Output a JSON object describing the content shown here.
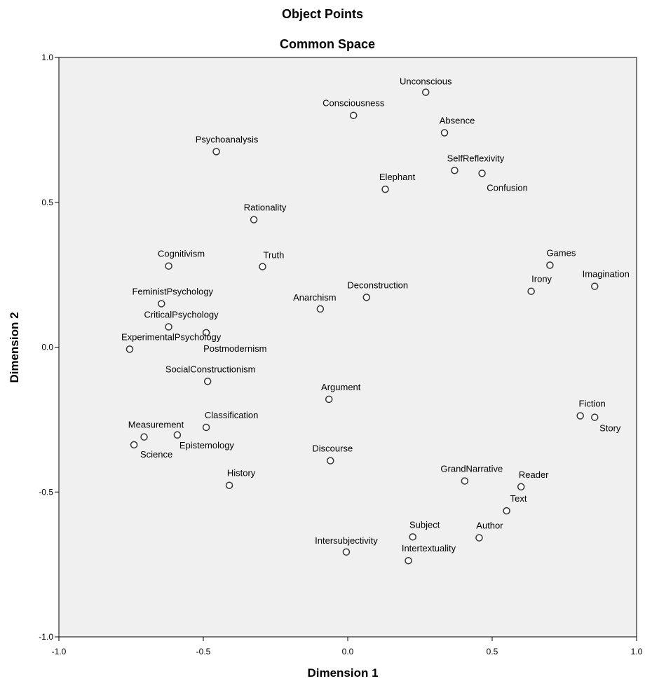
{
  "chart_data": {
    "type": "scatter",
    "title": "Object Points",
    "subtitle": "Common Space",
    "xlabel": "Dimension 1",
    "ylabel": "Dimension 2",
    "xlim": [
      -1.0,
      1.0
    ],
    "ylim": [
      -1.0,
      1.0
    ],
    "x_ticks": [
      "-1.0",
      "-0.5",
      "0.0",
      "0.5",
      "1.0"
    ],
    "y_ticks": [
      "-1.0",
      "-0.5",
      "0.0",
      "0.5",
      "1.0"
    ],
    "grid": false,
    "legend": "none",
    "colors": {
      "plot_background": "#f0f0f0",
      "marker_stroke": "#333333",
      "marker_fill": "#ffffff",
      "axis": "#000000"
    },
    "points": [
      {
        "label": "Unconscious",
        "x": 0.27,
        "y": 0.88
      },
      {
        "label": "Consciousness",
        "x": 0.02,
        "y": 0.8
      },
      {
        "label": "Absence",
        "x": 0.335,
        "y": 0.74
      },
      {
        "label": "Psychoanalysis",
        "x": -0.455,
        "y": 0.675
      },
      {
        "label": "SelfReflexivity",
        "x": 0.37,
        "y": 0.61
      },
      {
        "label": "Confusion",
        "x": 0.465,
        "y": 0.6
      },
      {
        "label": "Elephant",
        "x": 0.13,
        "y": 0.545
      },
      {
        "label": "Rationality",
        "x": -0.325,
        "y": 0.44
      },
      {
        "label": "Cognitivism",
        "x": -0.62,
        "y": 0.28
      },
      {
        "label": "Truth",
        "x": -0.295,
        "y": 0.278
      },
      {
        "label": "Games",
        "x": 0.7,
        "y": 0.283
      },
      {
        "label": "Imagination",
        "x": 0.855,
        "y": 0.21
      },
      {
        "label": "Irony",
        "x": 0.635,
        "y": 0.193
      },
      {
        "label": "Deconstruction",
        "x": 0.065,
        "y": 0.172
      },
      {
        "label": "FeministPsychology",
        "x": -0.645,
        "y": 0.15
      },
      {
        "label": "Anarchism",
        "x": -0.095,
        "y": 0.132
      },
      {
        "label": "CriticalPsychology",
        "x": -0.62,
        "y": 0.07
      },
      {
        "label": "Postmodernism",
        "x": -0.49,
        "y": 0.05
      },
      {
        "label": "ExperimentalPsychology",
        "x": -0.755,
        "y": -0.007
      },
      {
        "label": "SocialConstructionism",
        "x": -0.485,
        "y": -0.118
      },
      {
        "label": "Argument",
        "x": -0.065,
        "y": -0.18
      },
      {
        "label": "Fiction",
        "x": 0.805,
        "y": -0.237
      },
      {
        "label": "Story",
        "x": 0.855,
        "y": -0.242
      },
      {
        "label": "Classification",
        "x": -0.49,
        "y": -0.277
      },
      {
        "label": "Measurement",
        "x": -0.705,
        "y": -0.31
      },
      {
        "label": "Epistemology",
        "x": -0.59,
        "y": -0.303
      },
      {
        "label": "Science",
        "x": -0.74,
        "y": -0.337
      },
      {
        "label": "Discourse",
        "x": -0.06,
        "y": -0.392
      },
      {
        "label": "GrandNarrative",
        "x": 0.405,
        "y": -0.462
      },
      {
        "label": "Reader",
        "x": 0.6,
        "y": -0.482
      },
      {
        "label": "History",
        "x": -0.41,
        "y": -0.477
      },
      {
        "label": "Text",
        "x": 0.55,
        "y": -0.565
      },
      {
        "label": "Subject",
        "x": 0.225,
        "y": -0.655
      },
      {
        "label": "Author",
        "x": 0.455,
        "y": -0.658
      },
      {
        "label": "Intersubjectivity",
        "x": -0.005,
        "y": -0.707
      },
      {
        "label": "Intertextuality",
        "x": 0.21,
        "y": -0.737
      }
    ]
  }
}
